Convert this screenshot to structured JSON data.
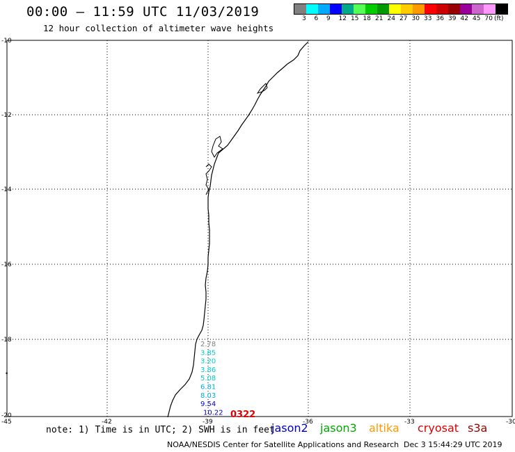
{
  "header": {
    "title": "00:00 — 11:59 UTC 11/03/2019",
    "subtitle": "12 hour collection of altimeter wave heights"
  },
  "legend": {
    "colors": [
      "#808080",
      "#00ffff",
      "#00aaff",
      "#0000ff",
      "#00aa88",
      "#55ff55",
      "#00cc00",
      "#009900",
      "#ffff00",
      "#ffcc00",
      "#ff9900",
      "#ff0000",
      "#cc0000",
      "#990000",
      "#990099",
      "#cc66cc",
      "#ff99ff",
      "#000000"
    ],
    "labels": [
      "3",
      "6",
      "9",
      "12",
      "15",
      "18",
      "21",
      "24",
      "27",
      "30",
      "33",
      "36",
      "39",
      "42",
      "45",
      "70",
      "(ft)"
    ]
  },
  "map": {
    "lat_labels": [
      "-10",
      "-12",
      "-14",
      "-16",
      "-18",
      "-20"
    ],
    "lon_labels": [
      "-45",
      "-42",
      "-39",
      "-36",
      "-33",
      "-30"
    ],
    "track_time": "0322",
    "wave_heights": [
      {
        "value": "2.78",
        "color": "#808080"
      },
      {
        "value": "3.85",
        "color": "#00cccc"
      },
      {
        "value": "3.20",
        "color": "#00cccc"
      },
      {
        "value": "3.86",
        "color": "#00cccc"
      },
      {
        "value": "5.08",
        "color": "#00cccc"
      },
      {
        "value": "6.81",
        "color": "#00aadd"
      },
      {
        "value": "8.03",
        "color": "#00aadd"
      },
      {
        "value": "9.54",
        "color": "#0000cc"
      },
      {
        "value": "10.22",
        "color": "#0000cc"
      }
    ]
  },
  "satellites": [
    {
      "name": "jason2",
      "color": "#0000cc"
    },
    {
      "name": "jason3",
      "color": "#00aa00"
    },
    {
      "name": "altika",
      "color": "#ff9900"
    },
    {
      "name": "cryosat",
      "color": "#dd0000"
    },
    {
      "name": "s3a",
      "color": "#990000"
    }
  ],
  "note": "note: 1) Time is in UTC; 2) SWH is in feet",
  "footer": {
    "credit": "NOAA/NESDIS Center for Satellite Applications and Research",
    "timestamp": "Dec  3 15:44:29 UTC 2019"
  }
}
